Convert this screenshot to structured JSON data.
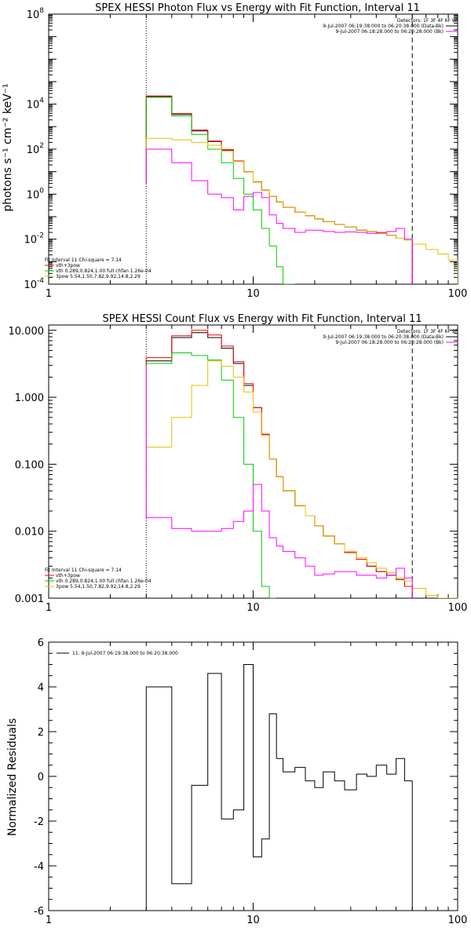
{
  "chart_data": [
    {
      "type": "line",
      "title": "SPEX HESSI Photon Flux vs Energy with Fit Function, Interval 11",
      "ylabel": "photons s⁻¹ cm⁻² keV⁻¹",
      "xlabel": "",
      "xscale": "log",
      "yscale": "log",
      "xlim": [
        1,
        100
      ],
      "ylim": [
        0.0001,
        100000000
      ],
      "x_ticks": [
        "1",
        "10",
        "100"
      ],
      "y_ticks": [
        {
          "value": 100000000,
          "base": "10",
          "exp": "8"
        },
        {
          "value": 10000,
          "base": "10",
          "exp": "4"
        },
        {
          "value": 100,
          "base": "10",
          "exp": "2"
        },
        {
          "value": 1,
          "base": "10",
          "exp": "0"
        },
        {
          "value": 0.01,
          "base": "10",
          "exp": "-2"
        },
        {
          "value": 0.0001,
          "base": "10",
          "exp": "-4"
        }
      ],
      "detectors_line": "Detectors: 1F 3F 4F 6F 9F",
      "time_lines": [
        {
          "text": "9-Jul-2007 06:19:38.000 to 06:20:38.000 (Data-Bk)",
          "color": "#000000"
        },
        {
          "text": "9-Jul-2007 06:18:28.000 to 06:20:28.000 (Bk)",
          "color": "#ff00ff"
        }
      ],
      "fit_info": {
        "header": "Fit Interval 11    Chi-square = 7.14",
        "entries": [
          {
            "text": "vth+3pow",
            "color": "#ff0000"
          },
          {
            "text": "vth 0.289,0.824,1.00  full chfan 1.26e-04",
            "color": "#00cc00"
          },
          {
            "text": "3pow 5.54,1.50,7.82,9.92,14.8,2.29",
            "color": "#e6c000"
          }
        ]
      },
      "vlines": [
        {
          "x": 3,
          "style": "dotted",
          "color": "#000000"
        },
        {
          "x": 60,
          "style": "dashed",
          "color": "#000000"
        }
      ],
      "bin_edges": [
        3,
        4,
        5,
        6,
        7,
        8,
        9,
        10,
        11,
        12,
        13,
        14,
        16,
        18,
        20,
        22,
        25,
        28,
        32,
        36,
        40,
        45,
        50,
        55,
        60,
        70,
        80,
        90,
        100
      ],
      "series": [
        {
          "color": "#000000",
          "start": 3,
          "values": [
            22000,
            3500,
            650,
            220,
            90,
            30,
            10,
            3.5,
            1.5,
            0.8,
            0.45,
            0.26,
            0.16,
            0.11,
            0.08,
            0.06,
            0.045,
            0.035,
            0.025,
            0.022,
            0.018,
            0.015,
            0.011,
            0.009
          ]
        },
        {
          "color": "#ff0000",
          "start": 3,
          "values": [
            23000,
            3800,
            700,
            230,
            95,
            30,
            10,
            3.6,
            1.5,
            0.8,
            0.45,
            0.26,
            0.16,
            0.11,
            0.08,
            0.06,
            0.045,
            0.035,
            0.025,
            0.022,
            0.018,
            0.015,
            0.011,
            0.009
          ]
        },
        {
          "color": "#00cc00",
          "start": 3,
          "values": [
            20000,
            3000,
            450,
            100,
            25,
            5,
            1,
            0.2,
            0.03,
            0.005,
            0.0006,
            7e-05
          ]
        },
        {
          "color": "#e6c000",
          "start": 3,
          "values": [
            300,
            260,
            200,
            150,
            80,
            28,
            10,
            3.5,
            1.5,
            0.8,
            0.45,
            0.26,
            0.16,
            0.11,
            0.08,
            0.06,
            0.045,
            0.035,
            0.025,
            0.022,
            0.018,
            0.015,
            0.011,
            0.009,
            0.006,
            0.0035,
            0.0022,
            0.0012
          ]
        },
        {
          "color": "#ff00ff",
          "start": 3,
          "values": [
            100,
            25,
            4,
            1,
            0.7,
            0.2,
            0.8,
            1.2,
            0.7,
            0.12,
            0.05,
            0.03,
            0.02,
            0.025,
            0.025,
            0.022,
            0.02,
            0.021,
            0.02,
            0.018,
            0.02,
            0.022,
            0.03,
            0.01
          ]
        }
      ]
    },
    {
      "type": "line",
      "title": "SPEX HESSI Count Flux vs Energy with Fit Function, Interval 11",
      "ylabel": "",
      "xlabel": "",
      "xscale": "log",
      "yscale": "log",
      "xlim": [
        1,
        100
      ],
      "ylim": [
        0.001,
        12
      ],
      "x_ticks": [
        "1",
        "10",
        "100"
      ],
      "y_ticks": [
        {
          "value": 10,
          "label": "10.000"
        },
        {
          "value": 1,
          "label": "1.000"
        },
        {
          "value": 0.1,
          "label": "0.100"
        },
        {
          "value": 0.01,
          "label": "0.010"
        },
        {
          "value": 0.001,
          "label": "0.001"
        }
      ],
      "detectors_line": "Detectors: 1F 3F 4F 6F 9F",
      "time_lines": [
        {
          "text": "9-Jul-2007 06:19:38.000 to 06:20:38.000 (Data-Bk)",
          "color": "#000000"
        },
        {
          "text": "9-Jul-2007 06:18:28.000 to 06:20:28.000 (Bk)",
          "color": "#ff00ff"
        }
      ],
      "fit_info": {
        "header": "Fit Interval 11    Chi-square = 7.14",
        "entries": [
          {
            "text": "vth+3pow",
            "color": "#ff0000"
          },
          {
            "text": "vth 0.289,0.824,1.00  full chfan 1.26e-04",
            "color": "#00cc00"
          },
          {
            "text": "3pow 5.54,1.50,7.82,9.92,14.8,2.29",
            "color": "#e6c000"
          }
        ]
      },
      "vlines": [
        {
          "x": 3,
          "style": "dotted",
          "color": "#000000"
        },
        {
          "x": 60,
          "style": "dashed",
          "color": "#000000"
        }
      ],
      "bin_edges": [
        3,
        4,
        5,
        6,
        7,
        8,
        9,
        10,
        11,
        12,
        13,
        14,
        16,
        18,
        20,
        22,
        25,
        28,
        32,
        36,
        40,
        45,
        50,
        55,
        60,
        70,
        80,
        90,
        100
      ],
      "series": [
        {
          "color": "#000000",
          "start": 3,
          "values": [
            3.5,
            7.8,
            9.2,
            7.8,
            5.4,
            3.2,
            1.5,
            0.7,
            0.28,
            0.12,
            0.065,
            0.04,
            0.024,
            0.017,
            0.012,
            0.0085,
            0.0065,
            0.0048,
            0.0038,
            0.003,
            0.0025,
            0.0022,
            0.0019,
            0.0015
          ]
        },
        {
          "color": "#ff0000",
          "start": 3,
          "values": [
            3.9,
            8.3,
            10,
            8.5,
            5.8,
            3.4,
            1.6,
            0.7,
            0.28,
            0.12,
            0.065,
            0.04,
            0.024,
            0.017,
            0.012,
            0.0085,
            0.0065,
            0.0048,
            0.0038,
            0.003,
            0.0025,
            0.0022,
            0.0019,
            0.0015
          ]
        },
        {
          "color": "#00cc00",
          "start": 3,
          "values": [
            3.2,
            4.6,
            4.2,
            3.6,
            1.8,
            0.5,
            0.1,
            0.01,
            0.0015,
            0.0002
          ]
        },
        {
          "color": "#e6c000",
          "start": 3,
          "values": [
            0.18,
            0.5,
            1.5,
            3.5,
            2.9,
            2,
            1.2,
            0.6,
            0.27,
            0.12,
            0.065,
            0.04,
            0.024,
            0.017,
            0.012,
            0.0085,
            0.0065,
            0.005,
            0.004,
            0.0034,
            0.0028,
            0.0024,
            0.002,
            0.0018,
            0.0014,
            0.0011,
            0.0009,
            0.0008
          ]
        },
        {
          "color": "#ff00ff",
          "start": 3,
          "values": [
            0.016,
            0.011,
            0.01,
            0.01,
            0.011,
            0.014,
            0.02,
            0.05,
            0.02,
            0.008,
            0.006,
            0.005,
            0.004,
            0.003,
            0.0022,
            0.0023,
            0.0025,
            0.0025,
            0.0022,
            0.0022,
            0.002,
            0.0022,
            0.0028,
            0.002
          ]
        }
      ]
    },
    {
      "type": "line",
      "title": "",
      "ylabel": "Normalized Residuals",
      "xlabel": "",
      "xscale": "log",
      "yscale": "linear",
      "xlim": [
        1,
        100
      ],
      "ylim": [
        -6,
        6
      ],
      "x_ticks": [
        "1",
        "10",
        "100"
      ],
      "y_ticks": [
        {
          "value": 6,
          "label": "6"
        },
        {
          "value": 4,
          "label": "4"
        },
        {
          "value": 2,
          "label": "2"
        },
        {
          "value": 0,
          "label": "0"
        },
        {
          "value": -2,
          "label": "-2"
        },
        {
          "value": -4,
          "label": "-4"
        },
        {
          "value": -6,
          "label": "-6"
        }
      ],
      "legend": {
        "text": "11.  9-Jul-2007 06:19:38.000 to 06:20:38.000",
        "color": "#000000"
      },
      "bin_edges": [
        3,
        4,
        5,
        6,
        7,
        8,
        9,
        10,
        11,
        12,
        13,
        14,
        16,
        18,
        20,
        22,
        25,
        28,
        32,
        36,
        40,
        45,
        50,
        55,
        60
      ],
      "series": [
        {
          "color": "#000000",
          "start": -6,
          "end": -6,
          "values": [
            4.0,
            -4.8,
            -0.4,
            4.6,
            -1.9,
            -1.5,
            5.0,
            -3.6,
            -2.8,
            2.8,
            0.8,
            0.2,
            0.4,
            -0.2,
            -0.5,
            0.2,
            -0.2,
            -0.6,
            0.1,
            0.0,
            0.5,
            0.1,
            0.8,
            -0.2
          ]
        }
      ]
    }
  ]
}
